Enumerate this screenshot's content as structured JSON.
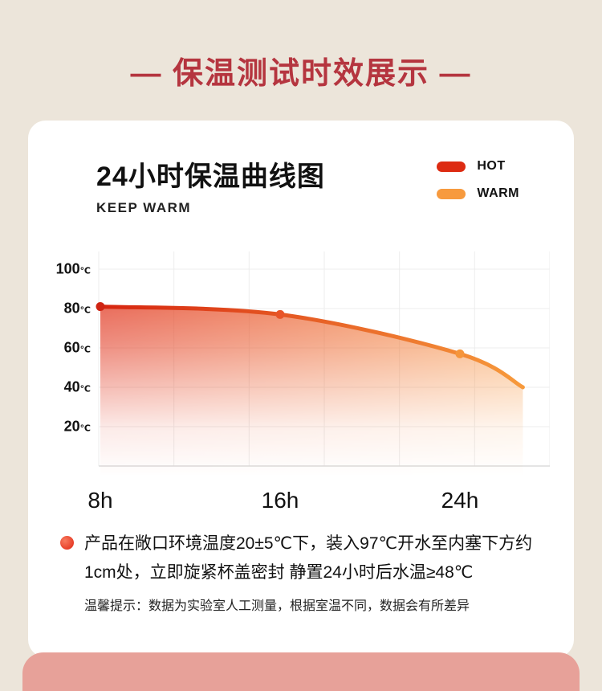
{
  "page": {
    "title": "— 保温测试时效展示 —",
    "title_color": "#b5353f",
    "bg_color": "#ece5da",
    "next_section_color": "#e7a199"
  },
  "chart_card": {
    "title": "24小时保温曲线图",
    "subtitle": "KEEP WARM",
    "legend": [
      {
        "label": "HOT",
        "color": "#dd2b12"
      },
      {
        "label": "WARM",
        "color": "#f79a3e"
      }
    ]
  },
  "chart_data": {
    "type": "area",
    "title": "24小时保温曲线图",
    "subtitle": "KEEP WARM",
    "x": [
      8,
      16,
      24
    ],
    "x_tick_labels": [
      "8h",
      "16h",
      "24h"
    ],
    "values": [
      81,
      77,
      57
    ],
    "curve_end": {
      "x": 26.8,
      "value": 40
    },
    "y_ticks": [
      100,
      80,
      60,
      40,
      20
    ],
    "y_unit": "℃",
    "ylim": [
      0,
      110
    ],
    "grid": true,
    "legend_position": "top-right",
    "marker_colors": [
      "#cf2413",
      "#e85427",
      "#f5953c"
    ],
    "area_gradient": {
      "left": "#e03018",
      "right": "#f89c4a"
    },
    "line_gradient": {
      "left": "#d6240f",
      "right": "#f79a3c"
    }
  },
  "footer": {
    "description": "产品在敞口环境温度20±5℃下，装入97℃开水至内塞下方约1cm处，立即旋紧杯盖密封 静置24小时后水温≥48℃",
    "note": "温馨提示：数据为实验室人工测量，根据室温不同，数据会有所差异"
  }
}
